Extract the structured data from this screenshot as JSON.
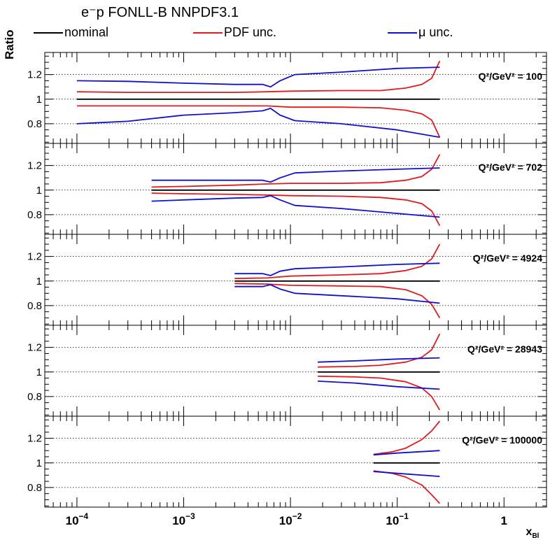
{
  "title": "e⁻p FONLL-B NNPDF3.1",
  "legend": [
    {
      "label": "nominal",
      "color": "#000000"
    },
    {
      "label": "PDF unc.",
      "color": "#e31a1c"
    },
    {
      "label": "μ unc.",
      "color": "#1010d0"
    }
  ],
  "axes": {
    "ylabel": "Ratio",
    "xlabel_main": "x",
    "xlabel_sub": "Bl",
    "xscale": "log",
    "xlim": [
      5e-05,
      2.5
    ],
    "ylim": [
      0.64,
      1.38
    ],
    "yticks": [
      0.8,
      1.0,
      1.2
    ],
    "ytick_labels": [
      "0.8",
      "1",
      "1.2"
    ],
    "xtick_values": [
      0.0001,
      0.001,
      0.01,
      0.1,
      1
    ],
    "xtick_bases": [
      "10",
      "10",
      "10",
      "10",
      "1"
    ],
    "xtick_exps": [
      "−4",
      "−3",
      "−2",
      "−1",
      ""
    ],
    "grid": "horizontal dotted"
  },
  "colors": {
    "nominal": "#000000",
    "pdf": "#e31a1c",
    "mu": "#1010d0"
  },
  "chart_data": {
    "type": "line",
    "panels": [
      {
        "label": "Q²/GeV² = 100",
        "series": [
          {
            "name": "nominal",
            "role": "nominal",
            "x": [
              0.0001,
              0.25
            ],
            "y": [
              1.0,
              1.0
            ]
          },
          {
            "name": "PDF unc.",
            "role": "pdf",
            "x": [
              0.0001,
              0.0003,
              0.001,
              0.003,
              0.006,
              0.01,
              0.03,
              0.07,
              0.12,
              0.17,
              0.21,
              0.25
            ],
            "y": [
              1.06,
              1.055,
              1.055,
              1.055,
              1.06,
              1.065,
              1.07,
              1.07,
              1.09,
              1.12,
              1.17,
              1.31
            ]
          },
          {
            "name": "PDF unc.",
            "role": "pdf",
            "x": [
              0.0001,
              0.0003,
              0.001,
              0.003,
              0.006,
              0.01,
              0.03,
              0.07,
              0.12,
              0.17,
              0.21,
              0.25
            ],
            "y": [
              0.945,
              0.945,
              0.945,
              0.945,
              0.945,
              0.935,
              0.935,
              0.93,
              0.91,
              0.88,
              0.83,
              0.69
            ]
          },
          {
            "name": "μ unc.",
            "role": "mu",
            "x": [
              0.0001,
              0.0003,
              0.001,
              0.003,
              0.0055,
              0.0065,
              0.008,
              0.011,
              0.03,
              0.1,
              0.25
            ],
            "y": [
              1.15,
              1.145,
              1.13,
              1.12,
              1.12,
              1.1,
              1.15,
              1.2,
              1.22,
              1.25,
              1.26
            ]
          },
          {
            "name": "μ unc.",
            "role": "mu",
            "x": [
              0.0001,
              0.0003,
              0.001,
              0.003,
              0.0055,
              0.0065,
              0.008,
              0.011,
              0.03,
              0.1,
              0.25
            ],
            "y": [
              0.8,
              0.82,
              0.87,
              0.89,
              0.905,
              0.925,
              0.87,
              0.825,
              0.8,
              0.75,
              0.69
            ]
          }
        ]
      },
      {
        "label": "Q²/GeV² = 702",
        "series": [
          {
            "name": "nominal",
            "role": "nominal",
            "x": [
              0.0005,
              0.25
            ],
            "y": [
              1.0,
              1.0
            ]
          },
          {
            "name": "PDF unc.",
            "role": "pdf",
            "x": [
              0.0005,
              0.001,
              0.003,
              0.006,
              0.01,
              0.03,
              0.07,
              0.12,
              0.17,
              0.21,
              0.25
            ],
            "y": [
              1.025,
              1.03,
              1.04,
              1.05,
              1.055,
              1.055,
              1.06,
              1.08,
              1.11,
              1.17,
              1.29
            ]
          },
          {
            "name": "PDF unc.",
            "role": "pdf",
            "x": [
              0.0005,
              0.001,
              0.003,
              0.006,
              0.01,
              0.03,
              0.07,
              0.12,
              0.17,
              0.21,
              0.25
            ],
            "y": [
              0.975,
              0.97,
              0.965,
              0.96,
              0.955,
              0.95,
              0.94,
              0.92,
              0.89,
              0.83,
              0.71
            ]
          },
          {
            "name": "μ unc.",
            "role": "mu",
            "x": [
              0.0005,
              0.001,
              0.003,
              0.0055,
              0.0065,
              0.008,
              0.011,
              0.03,
              0.1,
              0.25
            ],
            "y": [
              1.08,
              1.08,
              1.08,
              1.08,
              1.065,
              1.1,
              1.14,
              1.155,
              1.17,
              1.18
            ]
          },
          {
            "name": "μ unc.",
            "role": "mu",
            "x": [
              0.0005,
              0.001,
              0.003,
              0.0055,
              0.0065,
              0.008,
              0.011,
              0.03,
              0.1,
              0.25
            ],
            "y": [
              0.91,
              0.92,
              0.935,
              0.94,
              0.955,
              0.92,
              0.875,
              0.85,
              0.81,
              0.78
            ]
          }
        ]
      },
      {
        "label": "Q²/GeV² = 4924",
        "series": [
          {
            "name": "nominal",
            "role": "nominal",
            "x": [
              0.003,
              0.25
            ],
            "y": [
              1.0,
              1.0
            ]
          },
          {
            "name": "PDF unc.",
            "role": "pdf",
            "x": [
              0.003,
              0.006,
              0.01,
              0.03,
              0.07,
              0.12,
              0.17,
              0.21,
              0.25
            ],
            "y": [
              1.02,
              1.025,
              1.04,
              1.05,
              1.06,
              1.085,
              1.12,
              1.18,
              1.3
            ]
          },
          {
            "name": "PDF unc.",
            "role": "pdf",
            "x": [
              0.003,
              0.006,
              0.01,
              0.03,
              0.07,
              0.12,
              0.17,
              0.21,
              0.25
            ],
            "y": [
              0.98,
              0.975,
              0.965,
              0.96,
              0.955,
              0.93,
              0.88,
              0.81,
              0.7
            ]
          },
          {
            "name": "μ unc.",
            "role": "mu",
            "x": [
              0.003,
              0.0055,
              0.0065,
              0.008,
              0.011,
              0.03,
              0.1,
              0.25
            ],
            "y": [
              1.06,
              1.06,
              1.045,
              1.08,
              1.1,
              1.115,
              1.135,
              1.145
            ]
          },
          {
            "name": "μ unc.",
            "role": "mu",
            "x": [
              0.003,
              0.0055,
              0.0065,
              0.008,
              0.011,
              0.03,
              0.1,
              0.25
            ],
            "y": [
              0.955,
              0.955,
              0.97,
              0.935,
              0.9,
              0.88,
              0.855,
              0.82
            ]
          }
        ]
      },
      {
        "label": "Q²/GeV² = 28943",
        "series": [
          {
            "name": "nominal",
            "role": "nominal",
            "x": [
              0.018,
              0.25
            ],
            "y": [
              1.0,
              1.0
            ]
          },
          {
            "name": "PDF unc.",
            "role": "pdf",
            "x": [
              0.018,
              0.04,
              0.07,
              0.12,
              0.17,
              0.21,
              0.25
            ],
            "y": [
              1.04,
              1.045,
              1.055,
              1.08,
              1.12,
              1.18,
              1.31
            ]
          },
          {
            "name": "PDF unc.",
            "role": "pdf",
            "x": [
              0.018,
              0.04,
              0.07,
              0.12,
              0.17,
              0.21,
              0.25
            ],
            "y": [
              0.965,
              0.96,
              0.95,
              0.92,
              0.87,
              0.8,
              0.69
            ]
          },
          {
            "name": "μ unc.",
            "role": "mu",
            "x": [
              0.018,
              0.04,
              0.1,
              0.25
            ],
            "y": [
              1.08,
              1.09,
              1.105,
              1.115
            ]
          },
          {
            "name": "μ unc.",
            "role": "mu",
            "x": [
              0.018,
              0.04,
              0.1,
              0.25
            ],
            "y": [
              0.925,
              0.91,
              0.88,
              0.86
            ]
          }
        ]
      },
      {
        "label": "Q²/GeV² = 100000",
        "series": [
          {
            "name": "nominal",
            "role": "nominal",
            "x": [
              0.06,
              0.25
            ],
            "y": [
              1.0,
              1.0
            ]
          },
          {
            "name": "PDF unc.",
            "role": "pdf",
            "x": [
              0.06,
              0.09,
              0.12,
              0.17,
              0.21,
              0.25
            ],
            "y": [
              1.07,
              1.09,
              1.12,
              1.19,
              1.26,
              1.34
            ]
          },
          {
            "name": "PDF unc.",
            "role": "pdf",
            "x": [
              0.06,
              0.09,
              0.12,
              0.17,
              0.21,
              0.25
            ],
            "y": [
              0.935,
              0.915,
              0.885,
              0.82,
              0.74,
              0.67
            ]
          },
          {
            "name": "μ unc.",
            "role": "mu",
            "x": [
              0.06,
              0.1,
              0.25
            ],
            "y": [
              1.065,
              1.08,
              1.1
            ]
          },
          {
            "name": "μ unc.",
            "role": "mu",
            "x": [
              0.06,
              0.1,
              0.25
            ],
            "y": [
              0.93,
              0.915,
              0.89
            ]
          }
        ]
      }
    ]
  }
}
